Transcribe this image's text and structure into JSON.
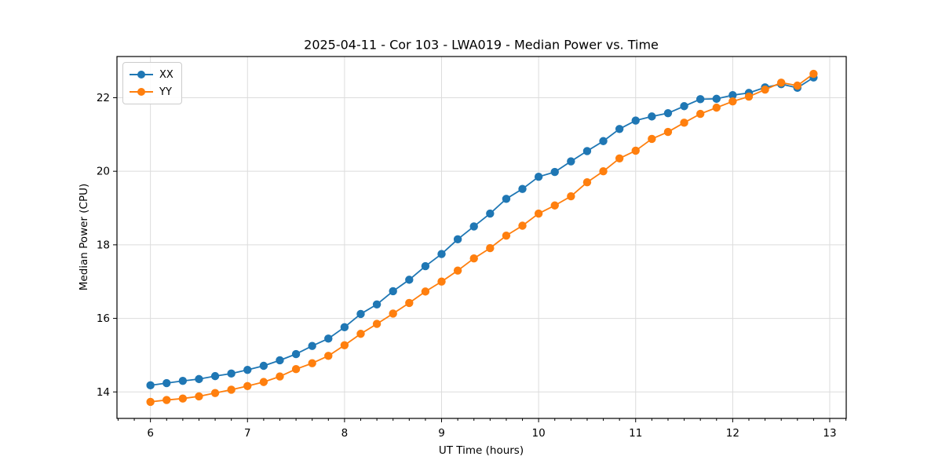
{
  "figure": {
    "background_color": "#ffffff",
    "spine_color": "#000000",
    "grid_color": "#dcdcdc",
    "tick_label_color": "#000000"
  },
  "chart_data": {
    "type": "line",
    "title": "2025-04-11 - Cor 103 - LWA019 - Median Power vs. Time",
    "xlabel": "UT Time (hours)",
    "ylabel": "Median Power (CPU)",
    "xlim": [
      5.655,
      13.17
    ],
    "ylim": [
      13.28,
      23.12
    ],
    "x_major_ticks": [
      6,
      7,
      8,
      9,
      10,
      11,
      12,
      13
    ],
    "x_minor_step": 0.16667,
    "y_major_ticks": [
      14,
      16,
      18,
      20,
      22
    ],
    "grid": true,
    "legend_position": "upper-left",
    "marker": "circle",
    "x": [
      6.0,
      6.1667,
      6.3333,
      6.5,
      6.6667,
      6.8333,
      7.0,
      7.1667,
      7.3333,
      7.5,
      7.6667,
      7.8333,
      8.0,
      8.1667,
      8.3333,
      8.5,
      8.6667,
      8.8333,
      9.0,
      9.1667,
      9.3333,
      9.5,
      9.6667,
      9.8333,
      10.0,
      10.1667,
      10.3333,
      10.5,
      10.6667,
      10.8333,
      11.0,
      11.1667,
      11.3333,
      11.5,
      11.6667,
      11.8333,
      12.0,
      12.1667,
      12.3333,
      12.5,
      12.6667,
      12.8333
    ],
    "series": [
      {
        "name": "XX",
        "color": "#1f77b4",
        "values": [
          14.18,
          14.24,
          14.3,
          14.35,
          14.43,
          14.5,
          14.6,
          14.71,
          14.86,
          15.03,
          15.25,
          15.45,
          15.76,
          16.12,
          16.38,
          16.74,
          17.05,
          17.42,
          17.75,
          18.15,
          18.5,
          18.85,
          19.25,
          19.52,
          19.85,
          19.98,
          20.27,
          20.55,
          20.82,
          21.15,
          21.38,
          21.49,
          21.58,
          21.77,
          21.96,
          21.97,
          22.07,
          22.13,
          22.28,
          22.37,
          22.27,
          22.55
        ]
      },
      {
        "name": "YY",
        "color": "#ff7f0e",
        "values": [
          13.73,
          13.78,
          13.82,
          13.88,
          13.97,
          14.06,
          14.16,
          14.27,
          14.42,
          14.62,
          14.78,
          14.98,
          15.27,
          15.58,
          15.85,
          16.13,
          16.42,
          16.73,
          17.0,
          17.3,
          17.63,
          17.91,
          18.25,
          18.52,
          18.85,
          19.07,
          19.32,
          19.7,
          20.0,
          20.35,
          20.56,
          20.88,
          21.07,
          21.32,
          21.56,
          21.73,
          21.9,
          22.03,
          22.22,
          22.41,
          22.33,
          22.65
        ]
      }
    ]
  }
}
